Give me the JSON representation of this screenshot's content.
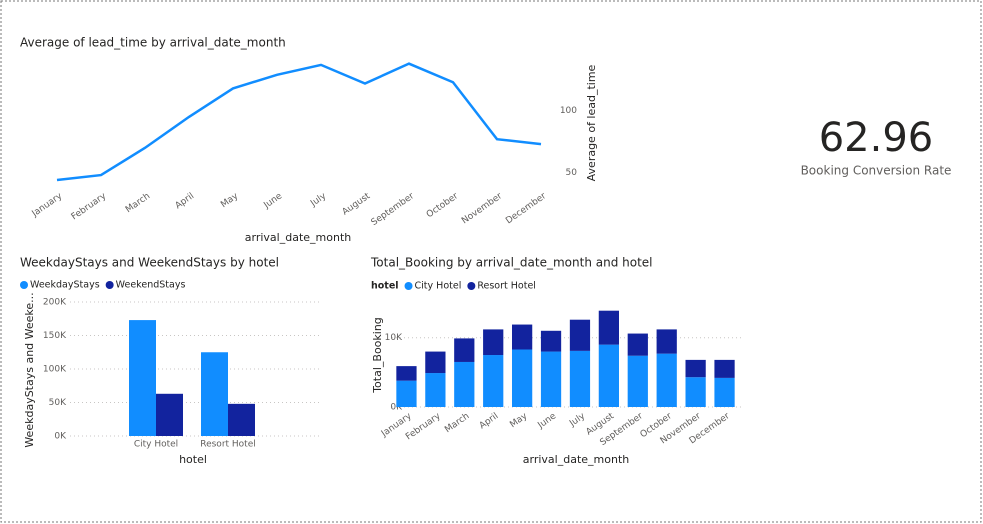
{
  "chart_data": [
    {
      "type": "line",
      "title": "Average of lead_time by arrival_date_month",
      "x_label": "arrival_date_month",
      "y_label": "Average of lead_time",
      "categories": [
        "January",
        "February",
        "March",
        "April",
        "May",
        "June",
        "July",
        "August",
        "September",
        "October",
        "November",
        "December"
      ],
      "values": [
        44,
        48,
        70,
        95,
        118,
        129,
        137,
        122,
        138,
        123,
        77,
        73
      ],
      "color": "#118DFF",
      "ylim": [
        40,
        145
      ],
      "yticks": [
        50,
        100
      ],
      "grid": false
    },
    {
      "type": "bar",
      "title": "WeekdayStays and WeekendStays by hotel",
      "x_label": "hotel",
      "y_label": "WeekdayStays and Weeke...",
      "categories": [
        "City Hotel",
        "Resort Hotel"
      ],
      "series": [
        {
          "name": "WeekdayStays",
          "color": "#118DFF",
          "values": [
            173000,
            125000
          ]
        },
        {
          "name": "WeekendStays",
          "color": "#12239E",
          "values": [
            63000,
            48000
          ]
        }
      ],
      "ylim": [
        0,
        200000
      ],
      "yticks": [
        {
          "value": 0,
          "label": "0K"
        },
        {
          "value": 50000,
          "label": "50K"
        },
        {
          "value": 100000,
          "label": "100K"
        },
        {
          "value": 150000,
          "label": "150K"
        },
        {
          "value": 200000,
          "label": "200K"
        }
      ],
      "grid": true
    },
    {
      "type": "stacked_bar",
      "title": "Total_Booking by arrival_date_month and hotel",
      "legend_title": "hotel",
      "x_label": "arrival_date_month",
      "y_label": "Total_Booking",
      "categories": [
        "January",
        "February",
        "March",
        "April",
        "May",
        "June",
        "July",
        "August",
        "September",
        "October",
        "November",
        "December"
      ],
      "series": [
        {
          "name": "City Hotel",
          "color": "#118DFF",
          "values": [
            3800,
            4900,
            6500,
            7500,
            8300,
            8000,
            8100,
            9000,
            7400,
            7700,
            4300,
            4200
          ]
        },
        {
          "name": "Resort Hotel",
          "color": "#12239E",
          "values": [
            2100,
            3100,
            3400,
            3700,
            3600,
            3000,
            4500,
            4900,
            3200,
            3500,
            2500,
            2600
          ]
        }
      ],
      "ylim": [
        0,
        14000
      ],
      "yticks": [
        {
          "value": 0,
          "label": "0K"
        },
        {
          "value": 10000,
          "label": "10K"
        }
      ],
      "grid": true
    }
  ],
  "card": {
    "value": 62.96,
    "label": "Booking Conversion Rate"
  }
}
